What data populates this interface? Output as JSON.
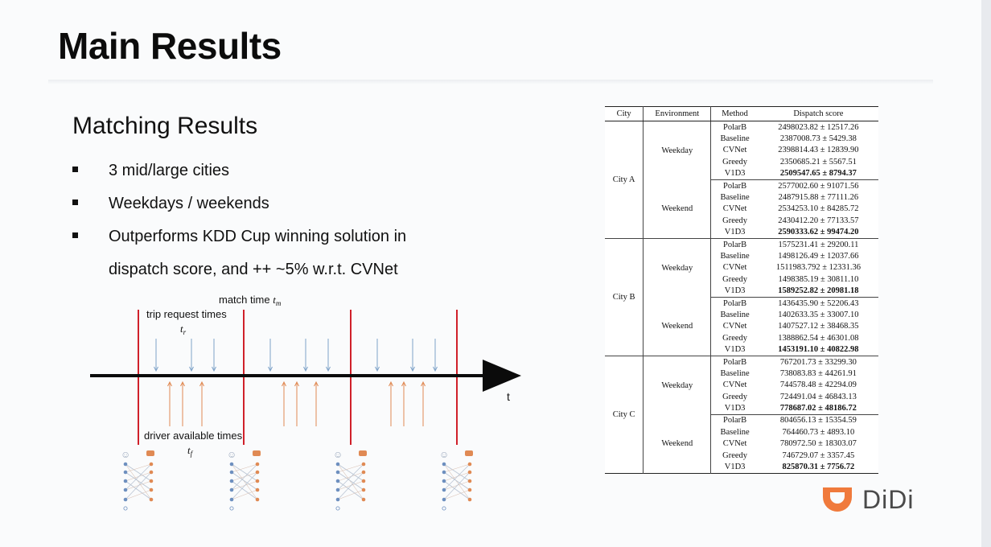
{
  "slide": {
    "title": "Main Results",
    "subtitle": "Matching Results",
    "bullets": [
      {
        "text": "3 mid/large cities"
      },
      {
        "text": "Weekdays / weekends"
      },
      {
        "text": "Outperforms KDD Cup winning solution in",
        "cont": "dispatch score, and ++ ~5% w.r.t. CVNet"
      }
    ]
  },
  "diagram": {
    "match_time_label": "match time",
    "match_time_symbol": "t",
    "match_time_sub": "m",
    "trip_request_label": "trip request times",
    "trip_request_symbol": "t",
    "trip_request_sub": "r",
    "driver_label": "driver available times",
    "driver_symbol": "t",
    "driver_sub": "f",
    "axis_label": "t",
    "colors": {
      "match": "#d0202a",
      "request": "#7fa3c9",
      "driver": "#e08a54",
      "axis": "#0b0b0b"
    }
  },
  "table": {
    "headers": [
      "City",
      "Environment",
      "Method",
      "Dispatch score"
    ],
    "cities": [
      {
        "name": "City A",
        "envs": [
          {
            "name": "Weekday",
            "rows": [
              {
                "method": "PolarB",
                "score": "2498023.82 ± 12517.26",
                "best": false
              },
              {
                "method": "Baseline",
                "score": "2387008.73 ± 5429.38",
                "best": false
              },
              {
                "method": "CVNet",
                "score": "2398814.43 ± 12839.90",
                "best": false
              },
              {
                "method": "Greedy",
                "score": "2350685.21 ± 5567.51",
                "best": false
              },
              {
                "method": "V1D3",
                "score": "2509547.65 ± 8794.37",
                "best": true
              }
            ]
          },
          {
            "name": "Weekend",
            "rows": [
              {
                "method": "PolarB",
                "score": "2577002.60 ± 91071.56",
                "best": false
              },
              {
                "method": "Baseline",
                "score": "2487915.88 ± 77111.26",
                "best": false
              },
              {
                "method": "CVNet",
                "score": "2534253.10 ± 84285.72",
                "best": false
              },
              {
                "method": "Greedy",
                "score": "2430412.20 ± 77133.57",
                "best": false
              },
              {
                "method": "V1D3",
                "score": "2590333.62 ± 99474.20",
                "best": true
              }
            ]
          }
        ]
      },
      {
        "name": "City B",
        "envs": [
          {
            "name": "Weekday",
            "rows": [
              {
                "method": "PolarB",
                "score": "1575231.41 ± 29200.11",
                "best": false
              },
              {
                "method": "Baseline",
                "score": "1498126.49 ± 12037.66",
                "best": false
              },
              {
                "method": "CVNet",
                "score": "1511983.792 ± 12331.36",
                "best": false
              },
              {
                "method": "Greedy",
                "score": "1498385.19 ± 30811.10",
                "best": false
              },
              {
                "method": "V1D3",
                "score": "1589252.82 ± 20981.18",
                "best": true
              }
            ]
          },
          {
            "name": "Weekend",
            "rows": [
              {
                "method": "PolarB",
                "score": "1436435.90 ± 52206.43",
                "best": false
              },
              {
                "method": "Baseline",
                "score": "1402633.35 ± 33007.10",
                "best": false
              },
              {
                "method": "CVNet",
                "score": "1407527.12 ± 38468.35",
                "best": false
              },
              {
                "method": "Greedy",
                "score": "1388862.54 ± 46301.08",
                "best": false
              },
              {
                "method": "V1D3",
                "score": "1453191.10 ± 40822.98",
                "best": true
              }
            ]
          }
        ]
      },
      {
        "name": "City C",
        "envs": [
          {
            "name": "Weekday",
            "rows": [
              {
                "method": "PolarB",
                "score": "767201.73 ± 33299.30",
                "best": false
              },
              {
                "method": "Baseline",
                "score": "738083.83 ± 44261.91",
                "best": false
              },
              {
                "method": "CVNet",
                "score": "744578.48 ± 42294.09",
                "best": false
              },
              {
                "method": "Greedy",
                "score": "724491.04 ± 46843.13",
                "best": false
              },
              {
                "method": "V1D3",
                "score": "778687.02 ± 48186.72",
                "best": true
              }
            ]
          },
          {
            "name": "Weekend",
            "rows": [
              {
                "method": "PolarB",
                "score": "804656.13 ± 15354.59",
                "best": false
              },
              {
                "method": "Baseline",
                "score": "764460.73 ± 4893.10",
                "best": false
              },
              {
                "method": "CVNet",
                "score": "780972.50 ± 18303.07",
                "best": false
              },
              {
                "method": "Greedy",
                "score": "746729.07 ± 3357.45",
                "best": false
              },
              {
                "method": "V1D3",
                "score": "825870.31 ± 7756.72",
                "best": true
              }
            ]
          }
        ]
      }
    ]
  },
  "logo": {
    "text": "DiDi",
    "icon": "didi-logo-icon",
    "color": "#f07a3c"
  }
}
